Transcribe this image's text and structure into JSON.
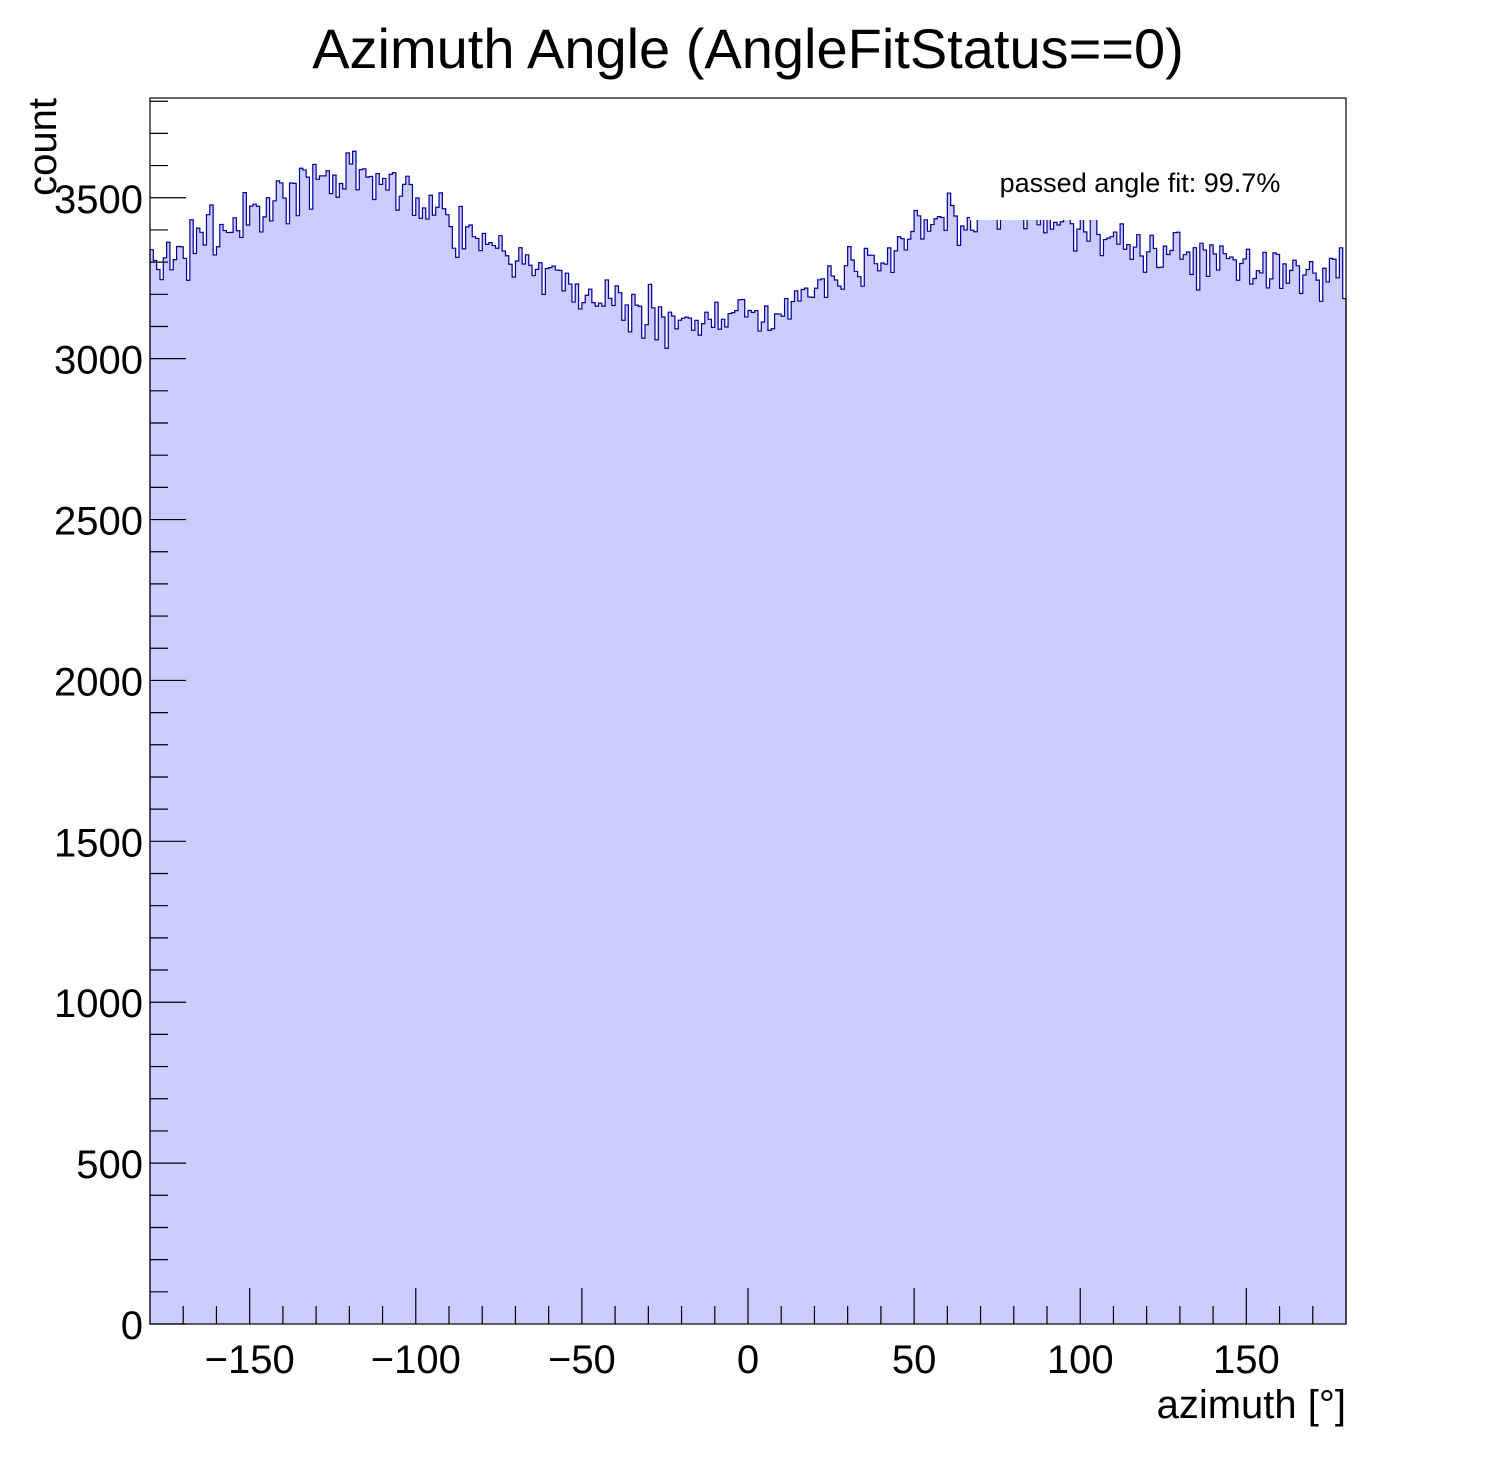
{
  "chart_data": {
    "type": "histogram",
    "title": "Azimuth Angle (AngleFitStatus==0)",
    "xlabel": "azimuth [°]",
    "ylabel": "count",
    "annotation": "passed angle fit: 99.7%",
    "xlim": [
      -180,
      180
    ],
    "ylim": [
      0,
      3810
    ],
    "x_ticks": [
      -150,
      -100,
      -50,
      0,
      50,
      100,
      150
    ],
    "x_tick_labels": [
      "−150",
      "−100",
      "−50",
      "0",
      "50",
      "100",
      "150"
    ],
    "y_ticks": [
      0,
      500,
      1000,
      1500,
      2000,
      2500,
      3000,
      3500
    ],
    "y_tick_labels": [
      "0",
      "500",
      "1000",
      "1500",
      "2000",
      "2500",
      "3000",
      "3500"
    ],
    "grid": false,
    "n_bins": 360,
    "bin_width": 1,
    "bin_low_edge": -180,
    "envelope_points": [
      [
        -180,
        3290
      ],
      [
        -170,
        3330
      ],
      [
        -160,
        3390
      ],
      [
        -150,
        3450
      ],
      [
        -140,
        3500
      ],
      [
        -130,
        3540
      ],
      [
        -120,
        3565
      ],
      [
        -110,
        3545
      ],
      [
        -100,
        3500
      ],
      [
        -90,
        3440
      ],
      [
        -80,
        3380
      ],
      [
        -70,
        3320
      ],
      [
        -60,
        3260
      ],
      [
        -50,
        3210
      ],
      [
        -40,
        3170
      ],
      [
        -30,
        3135
      ],
      [
        -20,
        3120
      ],
      [
        -10,
        3120
      ],
      [
        0,
        3130
      ],
      [
        10,
        3160
      ],
      [
        20,
        3210
      ],
      [
        30,
        3270
      ],
      [
        40,
        3330
      ],
      [
        50,
        3390
      ],
      [
        60,
        3430
      ],
      [
        70,
        3450
      ],
      [
        80,
        3450
      ],
      [
        90,
        3435
      ],
      [
        100,
        3410
      ],
      [
        110,
        3380
      ],
      [
        120,
        3350
      ],
      [
        130,
        3320
      ],
      [
        140,
        3300
      ],
      [
        150,
        3285
      ],
      [
        160,
        3275
      ],
      [
        170,
        3270
      ],
      [
        180,
        3270
      ]
    ],
    "colors": {
      "fill": "#ccccff",
      "line": "#000099",
      "axis": "#000000",
      "background": "#ffffff"
    }
  }
}
